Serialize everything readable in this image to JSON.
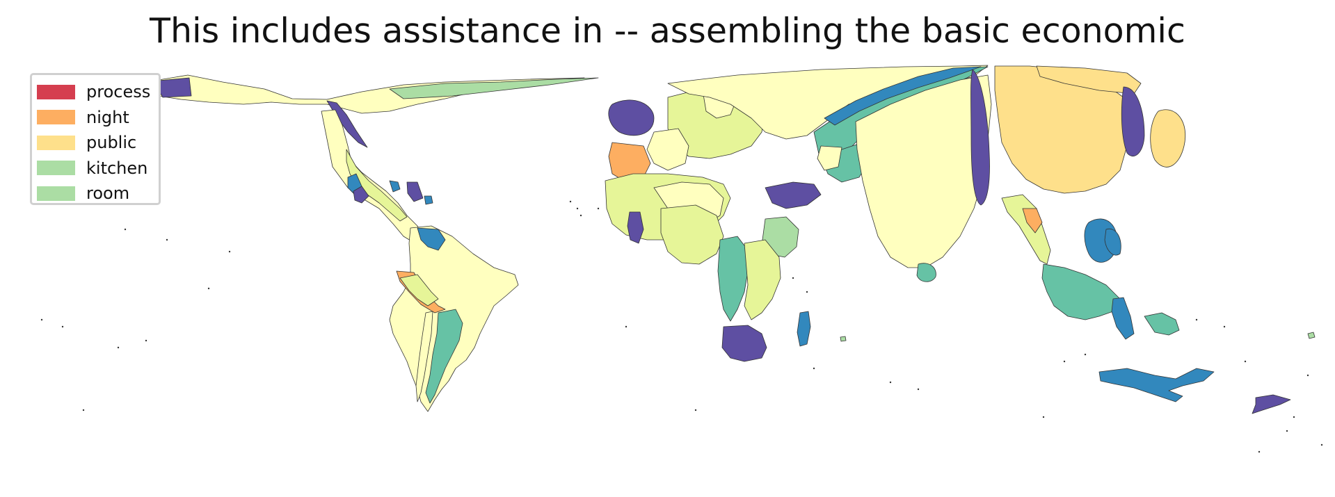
{
  "map": {
    "title": "This includes assistance in -- assembling the basic economic",
    "legend": [
      {
        "label": "process",
        "color": "#d53e4f"
      },
      {
        "label": "night",
        "color": "#fdae61"
      },
      {
        "label": "public",
        "color": "#fee08b"
      },
      {
        "label": "kitchen",
        "color": "#abdda4"
      },
      {
        "label": "room",
        "color": "#abdda4"
      }
    ],
    "palette": [
      "#5e4fa2",
      "#3288bd",
      "#66c2a5",
      "#abdda4",
      "#e6f598",
      "#ffffbf",
      "#fee08b",
      "#fdae61"
    ],
    "border_color": "#333333",
    "region_colors": {
      "north_america": "#ffffbf",
      "alaska": "#5e4fa2",
      "greenland_strip": "#abdda4",
      "canada_fan": "#5e4fa2",
      "central_america": "#e6f598",
      "caribbean": "#3288bd",
      "cuba": "#5e4fa2",
      "south_america": "#ffffbf",
      "brazil": "#ffffbf",
      "peru": "#fdae61",
      "bolivia": "#e6f598",
      "venezuela": "#3288bd",
      "argentina": "#66c2a5",
      "chile": "#ffffbf",
      "europe": "#e6f598",
      "uk": "#5e4fa2",
      "france": "#ffffbf",
      "iberia": "#fdae61",
      "scandinavia": "#ffffbf",
      "russia": "#ffffbf",
      "russia_band": "#66c2a5",
      "russia_blue": "#3288bd",
      "africa_north": "#e6f598",
      "sahel": "#ffffbf",
      "west_africa": "#5e4fa2",
      "nigeria": "#e6f598",
      "central_africa": "#66c2a5",
      "ethiopia": "#abdda4",
      "east_africa": "#e6f598",
      "southern_africa": "#5e4fa2",
      "madagascar": "#3288bd",
      "arabia": "#5e4fa2",
      "iran": "#ffffbf",
      "central_asia": "#66c2a5",
      "india": "#ffffbf",
      "sri_lanka": "#66c2a5",
      "china": "#fee08b",
      "mongolia": "#fee08b",
      "korea_japan": "#5e4fa2",
      "japan": "#fee08b",
      "southeast_asia": "#e6f598",
      "thailand": "#fdae61",
      "indonesia": "#66c2a5",
      "philippines": "#3288bd",
      "australia": "#3288bd",
      "new_zealand": "#5e4fa2",
      "pacific_island": "#abdda4"
    }
  }
}
